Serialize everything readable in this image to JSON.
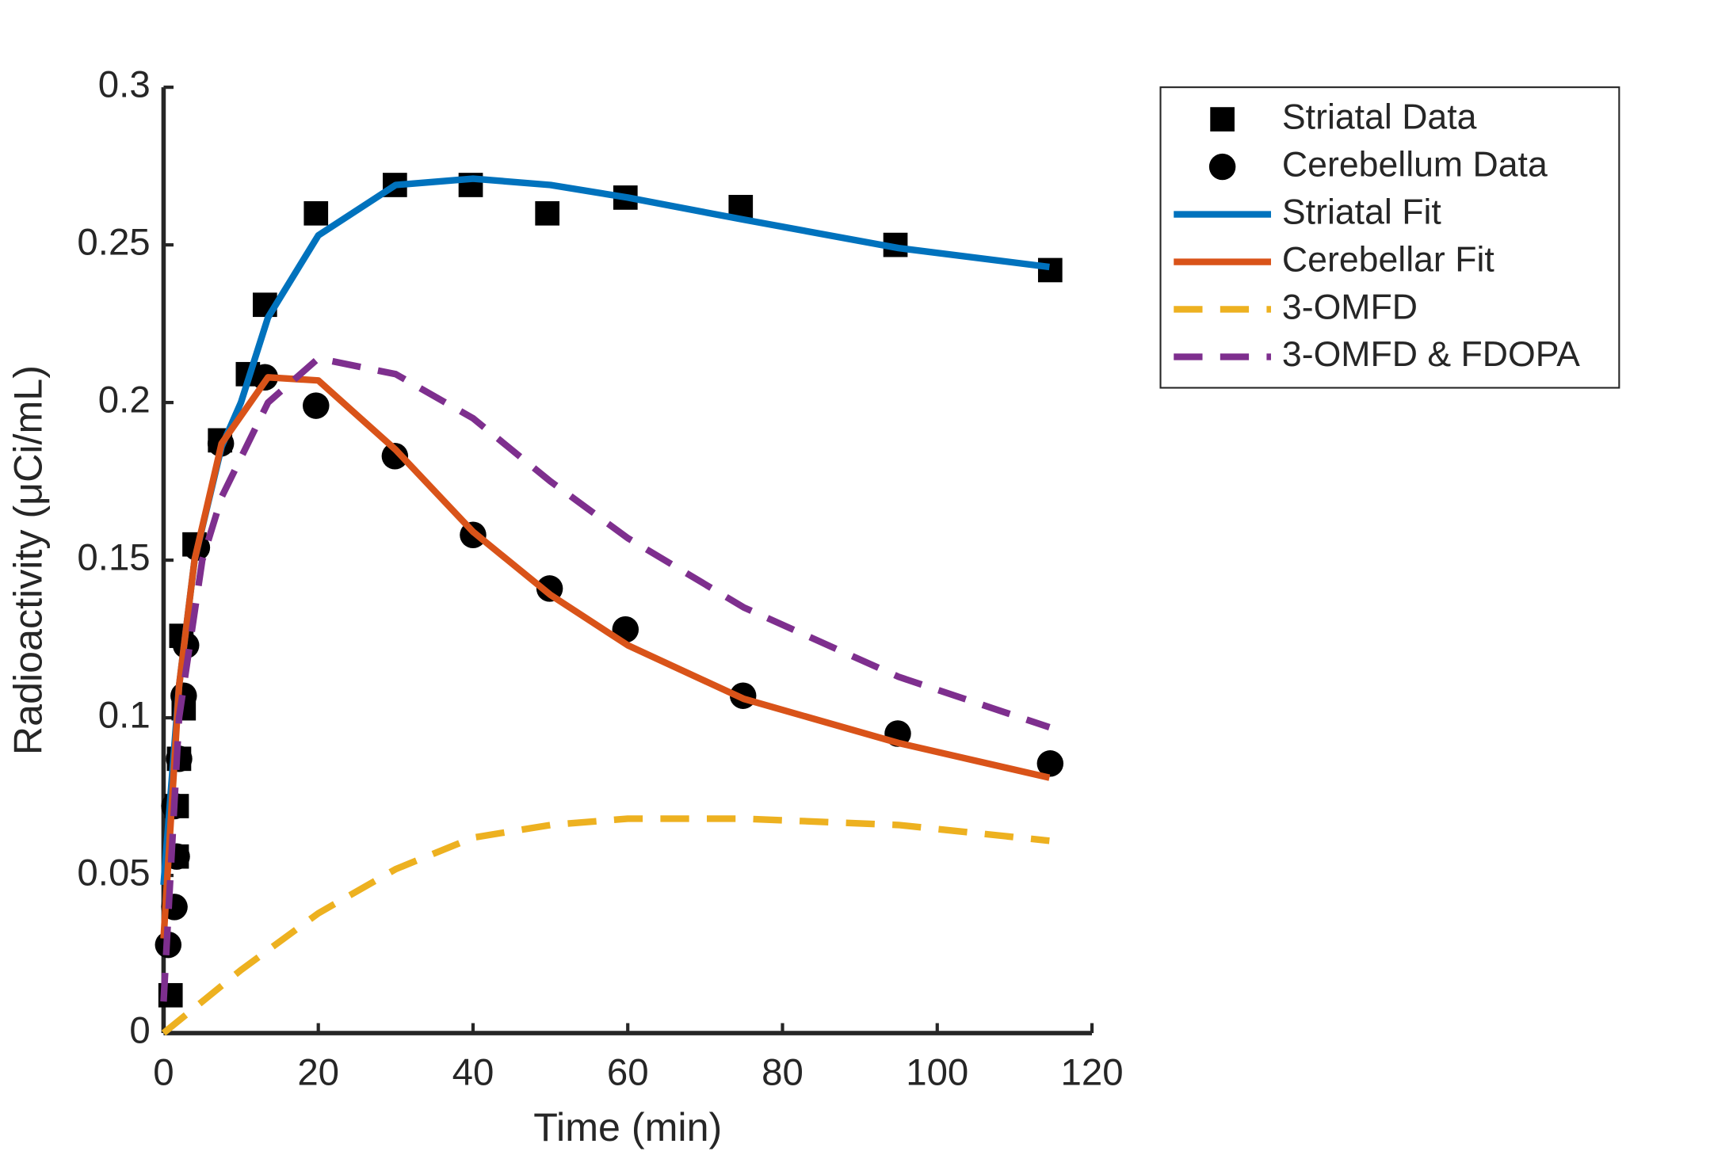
{
  "chart_data": {
    "type": "line",
    "xlabel": "Time (min)",
    "ylabel": "Radioactivity (μCi/mL)",
    "xlim": [
      0,
      120
    ],
    "xticks": [
      0,
      20,
      40,
      60,
      80,
      100,
      120
    ],
    "ylim": [
      0,
      0.3
    ],
    "yticks": [
      0,
      0.05,
      0.1,
      0.15,
      0.2,
      0.25,
      0.3
    ],
    "grid": false,
    "legend": "outside-right",
    "series": [
      {
        "name": "Striatal Data",
        "color": "#000000",
        "marker": "square",
        "x": [
          0.9,
          1.7,
          1.7,
          2.0,
          2.6,
          2.3,
          4,
          7.3,
          10.9,
          13.1,
          19.7,
          29.9,
          39.7,
          49.6,
          59.7,
          74.6,
          94.6,
          114.6
        ],
        "values": [
          0.012,
          0.056,
          0.072,
          0.087,
          0.103,
          0.126,
          0.155,
          0.188,
          0.209,
          0.231,
          0.26,
          0.269,
          0.269,
          0.26,
          0.265,
          0.262,
          0.25,
          0.242
        ]
      },
      {
        "name": "Cerebellum Data",
        "color": "#000000",
        "marker": "circle",
        "x": [
          0.6,
          1.4,
          1.7,
          1.4,
          2.0,
          2.6,
          2.9,
          4.3,
          7.4,
          13.1,
          19.7,
          29.9,
          40,
          49.9,
          59.7,
          74.9,
          94.9,
          114.6
        ],
        "values": [
          0.028,
          0.04,
          0.056,
          0.072,
          0.087,
          0.107,
          0.123,
          0.154,
          0.187,
          0.208,
          0.199,
          0.183,
          0.158,
          0.141,
          0.128,
          0.107,
          0.095,
          0.0855
        ]
      },
      {
        "name": "Striatal Fit",
        "color": "#0072bd",
        "line": "solid",
        "x": [
          0,
          2,
          4,
          7.5,
          10,
          13.5,
          20,
          30,
          40,
          50,
          60,
          75,
          95,
          114.5
        ],
        "values": [
          0.047,
          0.11,
          0.15,
          0.186,
          0.2,
          0.227,
          0.253,
          0.269,
          0.271,
          0.269,
          0.265,
          0.258,
          0.249,
          0.243
        ]
      },
      {
        "name": "Cerebellar Fit",
        "color": "#d95319",
        "line": "solid",
        "x": [
          0,
          1,
          2,
          4,
          7.5,
          13.5,
          20,
          30,
          40,
          50,
          60,
          75,
          95,
          114.5
        ],
        "values": [
          0.03,
          0.07,
          0.11,
          0.15,
          0.187,
          0.208,
          0.207,
          0.185,
          0.159,
          0.139,
          0.123,
          0.106,
          0.092,
          0.081
        ]
      },
      {
        "name": "3-OMFD",
        "color": "#edb120",
        "line": "dash",
        "x": [
          0,
          5,
          10,
          20,
          30,
          40,
          50,
          60,
          75,
          95,
          114.5
        ],
        "values": [
          0,
          0.01,
          0.02,
          0.038,
          0.052,
          0.062,
          0.066,
          0.068,
          0.068,
          0.066,
          0.061
        ]
      },
      {
        "name": "3-OMFD & FDOPA",
        "color": "#7e2f8e",
        "line": "dash",
        "x": [
          0,
          2,
          5,
          7.5,
          13.5,
          20,
          30,
          40,
          50,
          60,
          75,
          95,
          114.5
        ],
        "values": [
          0.01,
          0.1,
          0.15,
          0.17,
          0.2,
          0.214,
          0.209,
          0.195,
          0.175,
          0.157,
          0.135,
          0.113,
          0.097
        ]
      }
    ]
  }
}
